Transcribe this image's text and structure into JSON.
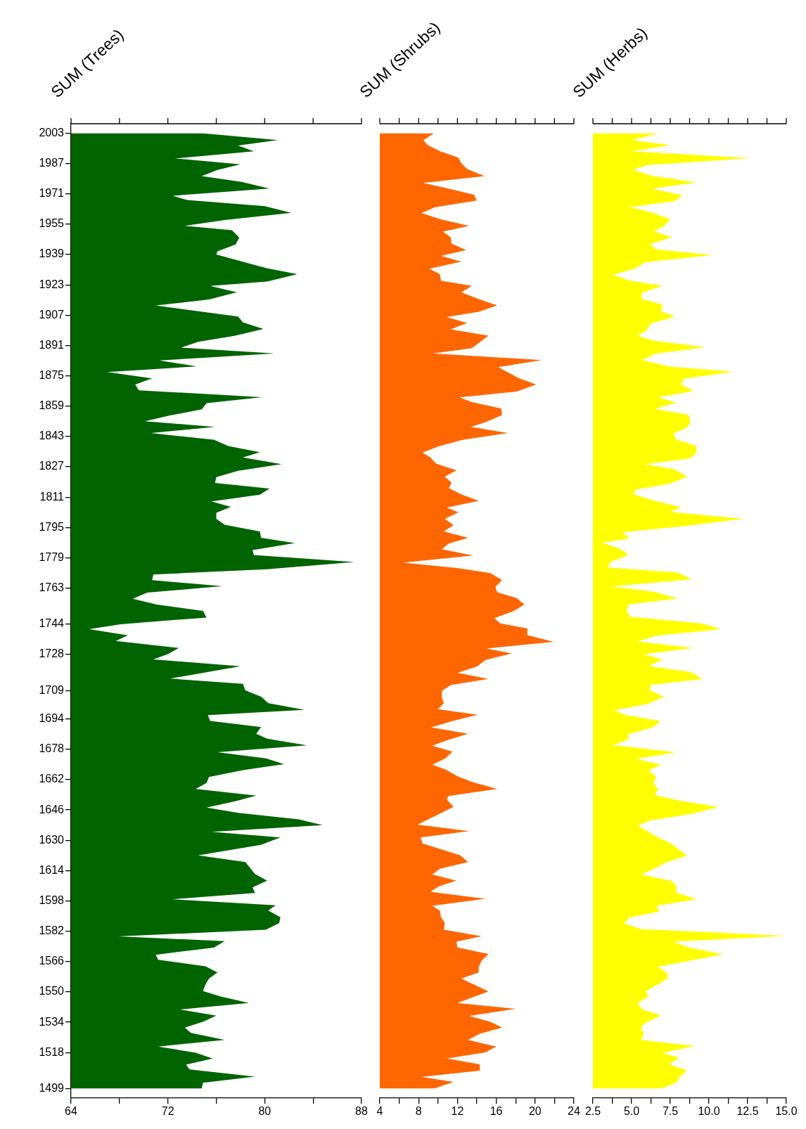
{
  "chart_data": [
    {
      "type": "area",
      "orientation": "horizontal",
      "title": "SUM (Trees)",
      "color": "#006400",
      "x": [
        2003.0,
        1999.4,
        1996.5,
        1993.4,
        1989.7,
        1986.6,
        1983.6,
        1980.4,
        1977.3,
        1973.8,
        1970.0,
        1967.8,
        1964.5,
        1961.0,
        1957.2,
        1954.1,
        1951.8,
        1947.9,
        1944.3,
        1940.7,
        1939.0,
        1931.9,
        1928.6,
        1924.7,
        1922.4,
        1919.1,
        1915.3,
        1912.1,
        1906.3,
        1903.2,
        1899.7,
        1896.1,
        1892.9,
        1889.9,
        1886.8,
        1883.1,
        1880.0,
        1877.0,
        1873.7,
        1870.4,
        1867.4,
        1863.7,
        1860.6,
        1857.3,
        1854.0,
        1851.0,
        1848.1,
        1844.8,
        1841.3,
        1838.0,
        1834.7,
        1831.9,
        1828.4,
        1824.9,
        1821.6,
        1818.5,
        1815.5,
        1812.3,
        1808.8,
        1805.9,
        1802.7,
        1799.6,
        1796.4,
        1792.9,
        1789.6,
        1786.8,
        1783.1,
        1780.5,
        1776.8,
        1773.0,
        1770.2,
        1767.2,
        1764.1,
        1760.6,
        1757.4,
        1754.3,
        1751.0,
        1747.5,
        1744.0,
        1741.4,
        1738.1,
        1735.1,
        1731.4,
        1728.2,
        1725.4,
        1721.8,
        1715.3,
        1712.5,
        1709.1,
        1705.8,
        1702.3,
        1698.8,
        1696.0,
        1693.0,
        1689.7,
        1686.2,
        1683.6,
        1680.1,
        1676.5,
        1673.2,
        1670.2,
        1667.1,
        1663.4,
        1660.2,
        1657.1,
        1653.6,
        1650.8,
        1647.3,
        1644.5,
        1641.0,
        1638.0,
        1634.5,
        1631.5,
        1627.6,
        1622.0,
        1618.5,
        1612.2,
        1608.7,
        1605.2,
        1602.2,
        1598.9,
        1595.7,
        1592.9,
        1589.4,
        1586.3,
        1582.8,
        1579.3,
        1576.8,
        1573.4,
        1569.6,
        1567.0,
        1563.5,
        1560.3,
        1557.0,
        1553.8,
        1550.5,
        1547.7,
        1544.2,
        1540.7,
        1537.5,
        1534.2,
        1531.2,
        1528.4,
        1524.7,
        1521.2,
        1517.9,
        1514.9,
        1511.6,
        1509.1,
        1505.3,
        1502.1,
        1499.0
      ],
      "values": [
        74.8,
        81.1,
        77.8,
        79.1,
        72.6,
        78.0,
        76.1,
        74.8,
        78.1,
        80.4,
        72.4,
        73.6,
        80.0,
        82.2,
        76.7,
        73.4,
        77.3,
        77.9,
        77.6,
        76.1,
        76.0,
        80.1,
        82.7,
        80.2,
        75.5,
        77.7,
        75.4,
        71.0,
        77.8,
        78.2,
        79.9,
        77.5,
        74.5,
        73.1,
        80.8,
        71.3,
        74.4,
        67.0,
        70.7,
        69.3,
        69.6,
        79.8,
        75.2,
        74.8,
        72.1,
        70.1,
        75.9,
        70.6,
        75.8,
        77.0,
        79.6,
        78.2,
        81.4,
        77.8,
        76.0,
        75.9,
        80.4,
        79.6,
        75.6,
        77.2,
        76.0,
        76.0,
        76.7,
        79.6,
        79.7,
        82.5,
        79.0,
        79.1,
        87.4,
        80.2,
        70.8,
        70.7,
        76.5,
        70.3,
        69.1,
        71.1,
        74.9,
        75.2,
        68.1,
        65.5,
        68.7,
        67.7,
        72.9,
        72.0,
        70.8,
        78.0,
        72.2,
        78.2,
        78.4,
        79.7,
        80.3,
        83.3,
        75.3,
        75.5,
        79.7,
        79.3,
        80.2,
        83.5,
        76.1,
        80.1,
        81.6,
        78.3,
        75.4,
        75.2,
        74.3,
        79.3,
        77.7,
        75.2,
        77.8,
        82.8,
        84.8,
        75.6,
        81.3,
        79.7,
        74.5,
        78.4,
        79.2,
        80.2,
        79.0,
        79.2,
        72.4,
        80.9,
        80.3,
        81.3,
        81.2,
        80.1,
        67.9,
        76.7,
        75.8,
        71.0,
        71.2,
        75.1,
        76.1,
        75.4,
        75.1,
        74.9,
        76.3,
        78.7,
        73.0,
        76.0,
        74.9,
        73.4,
        73.9,
        76.7,
        71.2,
        74.3,
        75.7,
        73.5,
        73.8,
        79.2,
        74.9,
        74.8
      ],
      "xlim": [
        64,
        88
      ],
      "xticks": [
        64,
        {
          "value": 68,
          "label": null
        },
        72,
        {
          "value": 76,
          "label": null
        },
        80,
        {
          "value": 84,
          "label": null
        },
        88
      ],
      "ylim": [
        1494,
        2008
      ],
      "yticks": [
        1499,
        1518,
        1534,
        1550,
        1566,
        1582,
        1598,
        1614,
        1630,
        1646,
        1662,
        1678,
        1694,
        1709,
        1728,
        1744,
        1763,
        1779,
        1795,
        1811,
        1827,
        1843,
        1859,
        1875,
        1891,
        1907,
        1923,
        1939,
        1955,
        1971,
        1987,
        2003
      ]
    },
    {
      "type": "area",
      "orientation": "horizontal",
      "title": "SUM (Shrubs)",
      "color": "#ff6600",
      "x": [
        2003.0,
        1999.4,
        1996.9,
        1993.5,
        1990.1,
        1987.1,
        1984.1,
        1980.4,
        1976.8,
        1973.5,
        1970.5,
        1967.5,
        1964.0,
        1960.9,
        1957.6,
        1954.1,
        1951.1,
        1948.1,
        1944.8,
        1941.3,
        1938.3,
        1935.2,
        1931.5,
        1928.6,
        1925.2,
        1922.4,
        1919.1,
        1915.5,
        1912.1,
        1908.8,
        1906.0,
        1902.9,
        1899.5,
        1896.2,
        1889.6,
        1886.8,
        1883.3,
        1879.6,
        1873.8,
        1870.4,
        1866.7,
        1863.6,
        1861.1,
        1857.8,
        1854.3,
        1850.8,
        1848.1,
        1844.8,
        1841.2,
        1837.9,
        1834.5,
        1832.0,
        1828.7,
        1825.2,
        1821.8,
        1818.6,
        1815.8,
        1812.5,
        1809.0,
        1805.5,
        1803.0,
        1799.6,
        1796.2,
        1792.9,
        1789.6,
        1786.5,
        1783.5,
        1780.2,
        1776.5,
        1773.5,
        1770.9,
        1767.2,
        1763.6,
        1760.8,
        1757.8,
        1754.3,
        1750.7,
        1747.2,
        1744.4,
        1741.7,
        1738.2,
        1734.7,
        1731.2,
        1728.6,
        1725.1,
        1721.6,
        1718.4,
        1715.1,
        1711.9,
        1708.8,
        1705.5,
        1702.3,
        1699.2,
        1696.2,
        1692.8,
        1689.5,
        1686.2,
        1683.0,
        1679.9,
        1676.7,
        1673.0,
        1669.9,
        1667.3,
        1663.8,
        1660.6,
        1657.1,
        1653.4,
        1651.5,
        1647.6,
        1638.3,
        1634.8,
        1631.5,
        1628.3,
        1622.0,
        1618.5,
        1615.0,
        1611.9,
        1608.7,
        1605.7,
        1602.8,
        1599.1,
        1595.4,
        1592.8,
        1589.6,
        1586.3,
        1582.8,
        1579.4,
        1576.5,
        1573.5,
        1570.0,
        1566.5,
        1563.3,
        1560.3,
        1557.0,
        1550.3,
        1544.2,
        1541.1,
        1537.3,
        1534.2,
        1531.2,
        1527.9,
        1524.7,
        1521.2,
        1518.1,
        1514.9,
        1511.8,
        1508.5,
        1505.1,
        1502.5,
        1499.0
      ],
      "values": [
        9.6,
        8.5,
        8.9,
        10.2,
        12.1,
        12.4,
        13.0,
        14.8,
        8.5,
        11.3,
        13.7,
        14.0,
        9.7,
        8.3,
        10.3,
        13.2,
        10.5,
        11.3,
        11.4,
        12.9,
        10.3,
        12.4,
        9.1,
        10.2,
        10.3,
        13.5,
        12.4,
        14.2,
        16.1,
        14.2,
        10.9,
        13.0,
        11.3,
        15.2,
        13.5,
        9.5,
        20.7,
        16.2,
        18.3,
        20.1,
        18.1,
        12.2,
        13.5,
        16.5,
        16.6,
        15.0,
        13.4,
        17.2,
        12.5,
        10.1,
        8.4,
        9.2,
        9.8,
        11.9,
        10.7,
        11.4,
        11.1,
        12.4,
        14.2,
        10.9,
        12.1,
        10.7,
        11.6,
        10.6,
        13.1,
        11.1,
        10.4,
        13.6,
        6.4,
        12.1,
        15.4,
        16.6,
        15.9,
        16.1,
        18.1,
        18.9,
        17.7,
        15.8,
        16.4,
        19.2,
        19.2,
        21.9,
        15.0,
        17.6,
        14.9,
        14.0,
        12.0,
        15.2,
        11.3,
        10.4,
        10.4,
        10.6,
        10.0,
        14.1,
        11.4,
        9.3,
        13.1,
        11.1,
        9.4,
        11.5,
        10.7,
        9.4,
        10.8,
        12.0,
        13.6,
        16.1,
        11.1,
        10.9,
        11.6,
        7.9,
        13.2,
        8.2,
        8.4,
        12.3,
        13.1,
        10.2,
        9.4,
        11.9,
        10.1,
        9.2,
        14.9,
        9.4,
        10.2,
        10.3,
        10.7,
        10.6,
        14.5,
        11.9,
        12.0,
        15.2,
        14.5,
        14.2,
        14.2,
        12.4,
        15.2,
        12.0,
        18.0,
        13.2,
        15.4,
        16.6,
        14.3,
        13.1,
        16.0,
        14.9,
        10.9,
        14.3,
        14.3,
        8.3,
        11.6,
        9.6
      ],
      "xlim": [
        4,
        24
      ],
      "xticks": [
        4,
        {
          "value": 6,
          "label": null
        },
        8,
        {
          "value": 10,
          "label": null
        },
        12,
        {
          "value": 14,
          "label": null
        },
        16,
        {
          "value": 18,
          "label": null
        },
        20,
        {
          "value": 22,
          "label": null
        },
        24
      ],
      "ylim": [
        1494,
        2008
      ],
      "tick_labels": "x"
    },
    {
      "type": "area",
      "orientation": "horizontal",
      "title": "SUM (Herbs)",
      "color": "#ffff00",
      "x": [
        2003.0,
        1999.4,
        1996.7,
        1993.4,
        1989.9,
        1986.1,
        1983.8,
        1980.6,
        1977.0,
        1973.7,
        1970.3,
        1967.2,
        1964.0,
        1961.0,
        1957.6,
        1953.9,
        1951.4,
        1948.1,
        1944.5,
        1941.7,
        1938.7,
        1934.9,
        1931.5,
        1928.4,
        1925.2,
        1922.4,
        1918.9,
        1915.8,
        1912.5,
        1909.2,
        1906.2,
        1902.5,
        1899.2,
        1896.2,
        1893.6,
        1890.1,
        1886.6,
        1883.3,
        1880.0,
        1877.2,
        1873.5,
        1870.4,
        1867.0,
        1863.6,
        1860.9,
        1857.6,
        1854.4,
        1850.6,
        1847.8,
        1844.5,
        1841.5,
        1838.0,
        1834.5,
        1831.5,
        1828.4,
        1825.6,
        1821.8,
        1818.1,
        1815.0,
        1812.7,
        1809.3,
        1805.7,
        1803.2,
        1799.6,
        1796.1,
        1792.4,
        1789.3,
        1787.0,
        1784.0,
        1780.5,
        1776.7,
        1773.9,
        1771.2,
        1767.7,
        1763.9,
        1761.2,
        1757.6,
        1754.3,
        1751.0,
        1747.9,
        1744.4,
        1741.4,
        1737.9,
        1734.9,
        1731.4,
        1728.2,
        1725.3,
        1721.9,
        1718.8,
        1715.1,
        1711.9,
        1709.0,
        1705.8,
        1701.9,
        1698.6,
        1696.3,
        1692.8,
        1689.3,
        1686.0,
        1683.2,
        1680.2,
        1676.5,
        1672.9,
        1669.9,
        1666.9,
        1663.4,
        1660.2,
        1656.9,
        1653.9,
        1651.1,
        1647.6,
        1644.1,
        1640.4,
        1637.8,
        1631.5,
        1628.2,
        1624.8,
        1621.9,
        1618.2,
        1615.0,
        1611.9,
        1608.5,
        1605.9,
        1602.4,
        1598.9,
        1595.4,
        1592.5,
        1589.3,
        1586.3,
        1583.1,
        1579.6,
        1576.5,
        1573.5,
        1569.8,
        1563.3,
        1560.0,
        1556.8,
        1550.3,
        1547.7,
        1544.2,
        1540.7,
        1537.7,
        1533.7,
        1531.0,
        1527.9,
        1524.7,
        1521.4,
        1517.9,
        1515.1,
        1511.9,
        1508.6,
        1505.1,
        1502.1,
        1499.0
      ],
      "values": [
        6.8,
        5.0,
        7.5,
        5.0,
        12.7,
        6.0,
        5.1,
        6.3,
        9.2,
        6.3,
        8.3,
        7.8,
        4.9,
        6.4,
        7.5,
        7.1,
        6.4,
        7.6,
        6.2,
        6.6,
        10.2,
        5.9,
        5.2,
        3.8,
        4.9,
        7.0,
        5.7,
        5.6,
        7.0,
        6.9,
        7.8,
        6.2,
        6.0,
        5.4,
        6.4,
        9.8,
        6.5,
        5.7,
        7.4,
        11.6,
        8.4,
        8.2,
        9.0,
        6.7,
        7.9,
        6.5,
        8.7,
        8.8,
        8.6,
        7.7,
        7.9,
        9.2,
        9.2,
        8.8,
        5.9,
        7.8,
        8.6,
        7.5,
        5.3,
        5.1,
        6.4,
        8.2,
        7.5,
        12.2,
        8.8,
        4.4,
        4.9,
        3.1,
        4.2,
        4.8,
        3.6,
        3.5,
        8.0,
        8.9,
        3.7,
        6.4,
        8.0,
        4.8,
        4.7,
        4.9,
        9.5,
        10.8,
        6.6,
        5.4,
        9.0,
        5.8,
        7.0,
        6.1,
        8.8,
        9.6,
        6.2,
        6.2,
        7.1,
        6.0,
        3.9,
        4.5,
        6.9,
        6.3,
        4.8,
        4.8,
        3.8,
        7.9,
        5.3,
        6.9,
        6.1,
        6.6,
        6.4,
        6.7,
        6.5,
        8.0,
        10.6,
        9.0,
        6.2,
        5.4,
        6.7,
        7.6,
        8.1,
        8.6,
        7.2,
        6.5,
        5.6,
        7.6,
        7.9,
        7.9,
        9.2,
        6.6,
        6.8,
        4.9,
        4.5,
        5.6,
        15.0,
        7.7,
        8.7,
        10.9,
        6.7,
        7.3,
        7.3,
        5.9,
        6.1,
        5.4,
        5.7,
        6.9,
        5.9,
        5.6,
        5.8,
        5.6,
        9.1,
        7.0,
        8.1,
        7.4,
        8.6,
        8.1,
        7.9,
        6.9
      ],
      "xlim": [
        2.5,
        15
      ],
      "xticks": [
        2.5,
        {
          "value": 3.75,
          "label": null
        },
        {
          "value": 5,
          "label": "5.0"
        },
        {
          "value": 6.25,
          "label": null
        },
        7.5,
        {
          "value": 8.75,
          "label": null
        },
        {
          "value": 10,
          "label": "10.0"
        },
        {
          "value": 11.25,
          "label": null
        },
        12.5,
        {
          "value": 13.75,
          "label": null
        },
        {
          "value": 15,
          "label": "15.0"
        }
      ],
      "ylim": [
        1494,
        2008
      ],
      "tick_labels": "x"
    }
  ]
}
